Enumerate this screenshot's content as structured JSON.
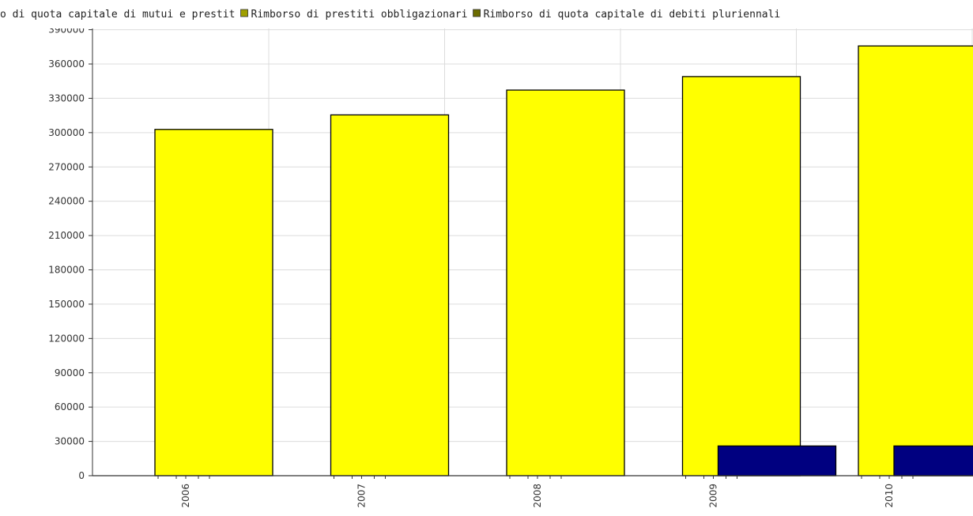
{
  "chart_data": {
    "type": "bar",
    "title": "",
    "xlabel": "",
    "ylabel": "",
    "categories": [
      "2006",
      "2007",
      "2008",
      "2009",
      "2010"
    ],
    "series": [
      {
        "name": "Rimborso di quota capitale di mutui e prestiti",
        "color": "#ffff00",
        "values": [
          0,
          0,
          0,
          0,
          0
        ]
      },
      {
        "name": "Rimborso di prestiti obbligazionari",
        "color": "#ffff00",
        "values": [
          302800,
          315500,
          337200,
          349000,
          375800
        ]
      },
      {
        "name": "Rimborso di quota capitale di debiti pluriennali",
        "color": "#000080",
        "values": [
          0,
          0,
          0,
          26000,
          26000
        ]
      }
    ],
    "legend": {
      "position": "top",
      "items": [
        {
          "label": "o di quota capitale di mutui e prestit",
          "color": "#ffff00",
          "swatch": false
        },
        {
          "label": "Rimborso di prestiti obbligazionari",
          "color": "#a0a000",
          "swatch": true
        },
        {
          "label": "Rimborso di quota capitale di debiti pluriennali",
          "color": "#6b6b00",
          "swatch": true
        }
      ]
    },
    "ylim": [
      0,
      390000
    ],
    "yticks": [
      0,
      30000,
      60000,
      90000,
      120000,
      150000,
      180000,
      210000,
      240000,
      270000,
      300000,
      330000,
      360000
    ],
    "ytick_labels": [
      "0",
      "30000",
      "60000",
      "90000",
      "120000",
      "150000",
      "180000",
      "210000",
      "240000",
      "270000",
      "300000",
      "330000",
      "360000"
    ],
    "grid": true
  }
}
